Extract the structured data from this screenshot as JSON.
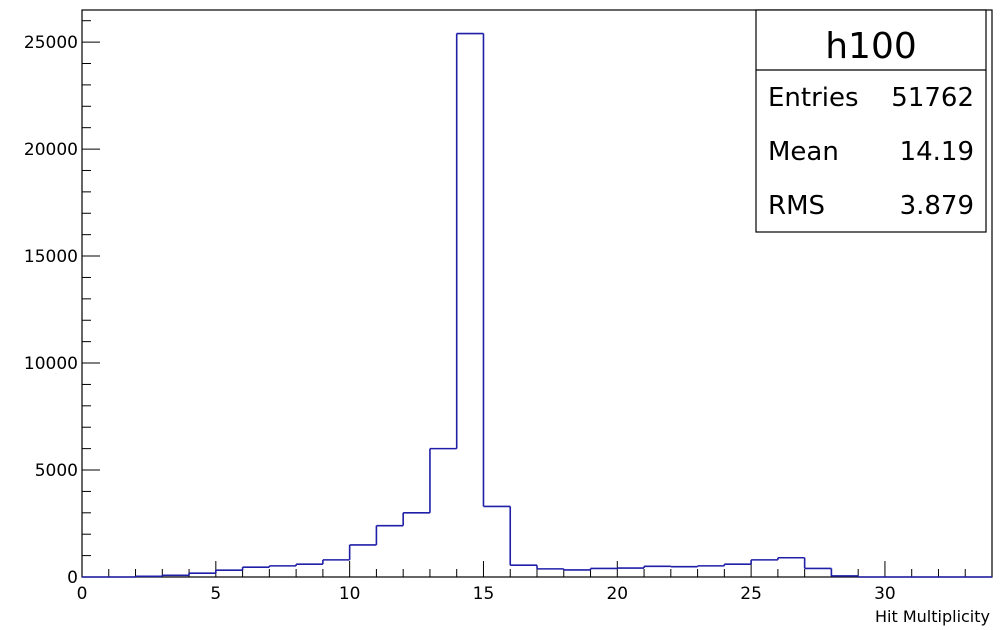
{
  "chart_data": {
    "type": "bar",
    "style": "step-histogram",
    "xlabel": "Hit Multiplicity",
    "ylabel": "",
    "xlim": [
      0,
      34
    ],
    "ylim": [
      0,
      26500
    ],
    "bin_width": 1,
    "x_ticks": [
      0,
      5,
      10,
      15,
      20,
      25,
      30
    ],
    "y_ticks": [
      0,
      5000,
      10000,
      15000,
      20000,
      25000
    ],
    "bins": [
      {
        "x": 0,
        "value": 0
      },
      {
        "x": 1,
        "value": 0
      },
      {
        "x": 2,
        "value": 30
      },
      {
        "x": 3,
        "value": 80
      },
      {
        "x": 4,
        "value": 180
      },
      {
        "x": 5,
        "value": 320
      },
      {
        "x": 6,
        "value": 460
      },
      {
        "x": 7,
        "value": 520
      },
      {
        "x": 8,
        "value": 600
      },
      {
        "x": 9,
        "value": 800
      },
      {
        "x": 10,
        "value": 1500
      },
      {
        "x": 11,
        "value": 2400
      },
      {
        "x": 12,
        "value": 3000
      },
      {
        "x": 13,
        "value": 6000
      },
      {
        "x": 14,
        "value": 25400
      },
      {
        "x": 15,
        "value": 3300
      },
      {
        "x": 16,
        "value": 550
      },
      {
        "x": 17,
        "value": 380
      },
      {
        "x": 18,
        "value": 330
      },
      {
        "x": 19,
        "value": 400
      },
      {
        "x": 20,
        "value": 420
      },
      {
        "x": 21,
        "value": 500
      },
      {
        "x": 22,
        "value": 480
      },
      {
        "x": 23,
        "value": 520
      },
      {
        "x": 24,
        "value": 600
      },
      {
        "x": 25,
        "value": 800
      },
      {
        "x": 26,
        "value": 900
      },
      {
        "x": 27,
        "value": 400
      },
      {
        "x": 28,
        "value": 50
      },
      {
        "x": 29,
        "value": 0
      },
      {
        "x": 30,
        "value": 0
      },
      {
        "x": 31,
        "value": 0
      },
      {
        "x": 32,
        "value": 0
      },
      {
        "x": 33,
        "value": 0
      }
    ],
    "line_color": "#1f1fa8",
    "stats_box": {
      "title": "h100",
      "rows": [
        {
          "label": "Entries",
          "value": "51762"
        },
        {
          "label": "Mean",
          "value": "14.19"
        },
        {
          "label": "RMS",
          "value": "3.879"
        }
      ]
    }
  }
}
